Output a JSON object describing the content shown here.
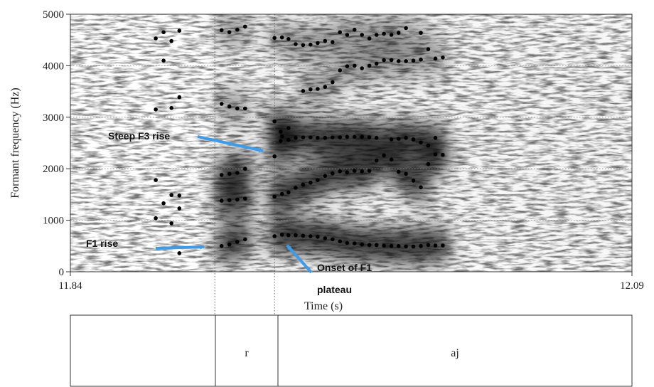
{
  "chart_data": {
    "type": "scatter",
    "xlabel": "Time (s)",
    "ylabel": "Formant frequency (Hz)",
    "xlim": [
      11.84,
      12.09
    ],
    "ylim": [
      0,
      5000
    ],
    "x_tick_labels": [
      "11.84",
      "12.09"
    ],
    "y_ticks": [
      0,
      1000,
      2000,
      3000,
      4000,
      5000
    ],
    "y_tick_labels": [
      "0",
      "1000",
      "2000",
      "3000",
      "4000",
      "5000"
    ],
    "grid": true,
    "background": "spectrogram",
    "boundaries": [
      11.9043,
      11.9309
    ],
    "formant_points": [
      [
        11.878,
        4530
      ],
      [
        11.878,
        3150
      ],
      [
        11.878,
        1780
      ],
      [
        11.878,
        1040
      ],
      [
        11.8815,
        4650
      ],
      [
        11.8815,
        4100
      ],
      [
        11.8815,
        1330
      ],
      [
        11.885,
        4480
      ],
      [
        11.885,
        3180
      ],
      [
        11.885,
        1490
      ],
      [
        11.885,
        940
      ],
      [
        11.8885,
        4680
      ],
      [
        11.8885,
        3390
      ],
      [
        11.8885,
        1480
      ],
      [
        11.8885,
        1230
      ],
      [
        11.8885,
        360
      ],
      [
        11.9073,
        4690
      ],
      [
        11.9073,
        3260
      ],
      [
        11.9073,
        1880
      ],
      [
        11.9073,
        1380
      ],
      [
        11.9073,
        500
      ],
      [
        11.9108,
        4650
      ],
      [
        11.9108,
        3210
      ],
      [
        11.9108,
        1900
      ],
      [
        11.9108,
        1390
      ],
      [
        11.9108,
        530
      ],
      [
        11.9143,
        4700
      ],
      [
        11.9143,
        3170
      ],
      [
        11.9143,
        1920
      ],
      [
        11.9143,
        1400
      ],
      [
        11.9143,
        580
      ],
      [
        11.9178,
        4760
      ],
      [
        11.9178,
        3170
      ],
      [
        11.9178,
        2000
      ],
      [
        11.9178,
        1420
      ],
      [
        11.9178,
        630
      ],
      [
        11.9309,
        4540
      ],
      [
        11.9309,
        2920
      ],
      [
        11.9309,
        2240
      ],
      [
        11.9309,
        1460
      ],
      [
        11.9309,
        690
      ],
      [
        11.9336,
        2720
      ],
      [
        11.9336,
        2540
      ],
      [
        11.9342,
        4550
      ],
      [
        11.9342,
        2630
      ],
      [
        11.9342,
        1510
      ],
      [
        11.9342,
        720
      ],
      [
        11.9371,
        4520
      ],
      [
        11.9371,
        2790
      ],
      [
        11.9371,
        2560
      ],
      [
        11.9371,
        1540
      ],
      [
        11.9371,
        710
      ],
      [
        11.9403,
        4420
      ],
      [
        11.9403,
        2600
      ],
      [
        11.9403,
        1630
      ],
      [
        11.9403,
        710
      ],
      [
        11.9436,
        4400
      ],
      [
        11.9436,
        3510
      ],
      [
        11.9436,
        2610
      ],
      [
        11.9436,
        1690
      ],
      [
        11.9436,
        700
      ],
      [
        11.9469,
        4410
      ],
      [
        11.9469,
        3540
      ],
      [
        11.9469,
        2610
      ],
      [
        11.9469,
        1730
      ],
      [
        11.9469,
        690
      ],
      [
        11.9501,
        4440
      ],
      [
        11.9501,
        3550
      ],
      [
        11.9501,
        2600
      ],
      [
        11.9501,
        1780
      ],
      [
        11.9501,
        680
      ],
      [
        11.9534,
        4480
      ],
      [
        11.9534,
        3590
      ],
      [
        11.9534,
        2600
      ],
      [
        11.9534,
        1860
      ],
      [
        11.9534,
        650
      ],
      [
        11.9567,
        4460
      ],
      [
        11.9567,
        3680
      ],
      [
        11.9567,
        2610
      ],
      [
        11.9567,
        1910
      ],
      [
        11.9567,
        630
      ],
      [
        11.96,
        4650
      ],
      [
        11.96,
        3910
      ],
      [
        11.96,
        2610
      ],
      [
        11.96,
        1950
      ],
      [
        11.96,
        590
      ],
      [
        11.9632,
        4600
      ],
      [
        11.9632,
        3990
      ],
      [
        11.9632,
        2620
      ],
      [
        11.9632,
        1930
      ],
      [
        11.9632,
        560
      ],
      [
        11.9665,
        4700
      ],
      [
        11.9665,
        4000
      ],
      [
        11.9665,
        2620
      ],
      [
        11.9665,
        1960
      ],
      [
        11.9665,
        550
      ],
      [
        11.9698,
        4600
      ],
      [
        11.9698,
        3950
      ],
      [
        11.9698,
        2620
      ],
      [
        11.9698,
        1950
      ],
      [
        11.9698,
        530
      ],
      [
        11.9731,
        4530
      ],
      [
        11.9731,
        4000
      ],
      [
        11.9731,
        2610
      ],
      [
        11.9731,
        1960
      ],
      [
        11.9731,
        520
      ],
      [
        11.9763,
        4600
      ],
      [
        11.9763,
        4040
      ],
      [
        11.9763,
        2600
      ],
      [
        11.9763,
        2160
      ],
      [
        11.9763,
        520
      ],
      [
        11.9796,
        4620
      ],
      [
        11.9796,
        4110
      ],
      [
        11.9796,
        2260
      ],
      [
        11.9796,
        510
      ],
      [
        11.9829,
        4600
      ],
      [
        11.9829,
        4110
      ],
      [
        11.9829,
        2570
      ],
      [
        11.9829,
        2180
      ],
      [
        11.9829,
        500
      ],
      [
        11.9861,
        4640
      ],
      [
        11.9861,
        4090
      ],
      [
        11.9861,
        2580
      ],
      [
        11.9861,
        1940
      ],
      [
        11.9861,
        500
      ],
      [
        11.9894,
        4730
      ],
      [
        11.9894,
        4090
      ],
      [
        11.9894,
        2600
      ],
      [
        11.9894,
        1900
      ],
      [
        11.9894,
        490
      ],
      [
        11.9927,
        4100
      ],
      [
        11.9927,
        2570
      ],
      [
        11.9927,
        1770
      ],
      [
        11.9927,
        490
      ],
      [
        11.996,
        4640
      ],
      [
        11.996,
        4120
      ],
      [
        11.996,
        2510
      ],
      [
        11.996,
        1640
      ],
      [
        11.996,
        500
      ],
      [
        11.9993,
        4320
      ],
      [
        11.9993,
        2450
      ],
      [
        11.9993,
        2090
      ],
      [
        11.9993,
        520
      ],
      [
        12.0025,
        4140
      ],
      [
        12.0025,
        2600
      ],
      [
        12.0025,
        2280
      ],
      [
        12.0025,
        510
      ],
      [
        12.0058,
        4160
      ],
      [
        12.0058,
        2270
      ],
      [
        12.0058,
        510
      ]
    ],
    "annotations": [
      {
        "text": "Steep F3 rise"
      },
      {
        "text": "F1 rise"
      },
      {
        "text": "Onset of F1"
      },
      {
        "text": "plateau"
      }
    ],
    "segments": [
      {
        "label": ""
      },
      {
        "label": "r"
      },
      {
        "label": "aj"
      }
    ],
    "arrow_color": "#3f9ae8"
  }
}
